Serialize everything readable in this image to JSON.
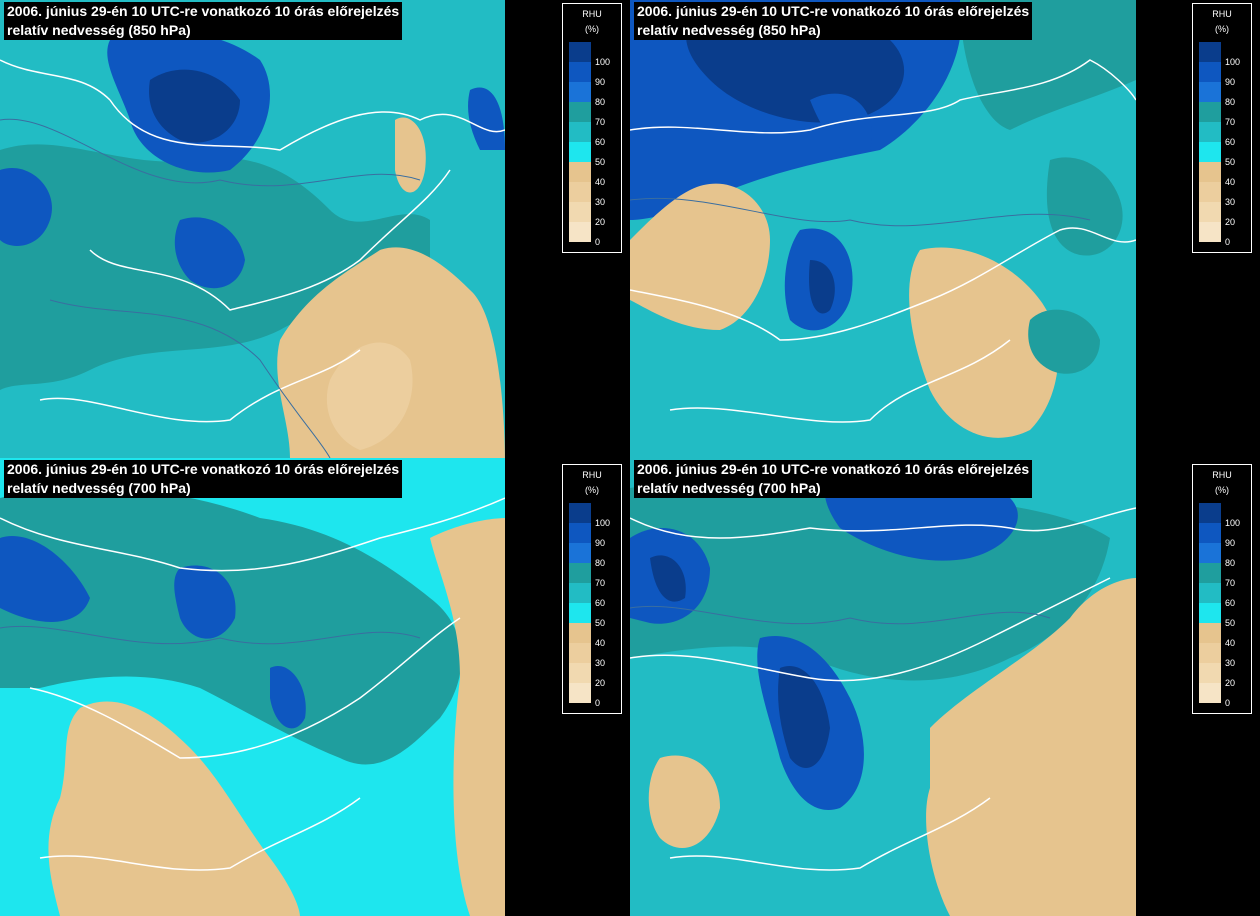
{
  "panels": [
    {
      "title_line1": "2006. június 29-én 10 UTC-re vonatkozó 10 órás előrejelzés",
      "title_line2": "relatív nedvesség (850 hPa)"
    },
    {
      "title_line1": "2006. június 29-én 10 UTC-re vonatkozó 10 órás előrejelzés",
      "title_line2": "relatív nedvesség (850 hPa)"
    },
    {
      "title_line1": "2006. június 29-én 10 UTC-re vonatkozó 10 órás előrejelzés",
      "title_line2": "relatív nedvesség (700 hPa)"
    },
    {
      "title_line1": "2006. június 29-én 10 UTC-re vonatkozó 10 órás előrejelzés",
      "title_line2": "relatív nedvesség (700 hPa)"
    }
  ],
  "legend": {
    "variable": "RHU",
    "unit": "(%)",
    "ticks": [
      "100",
      "90",
      "80",
      "70",
      "60",
      "50",
      "40",
      "30",
      "20",
      "0"
    ],
    "colors": [
      "#0a3d8c",
      "#0e57c0",
      "#1a73d8",
      "#1f9e9e",
      "#22bcc4",
      "#1ee6ee",
      "#e6c48e",
      "#ecce9e",
      "#f1d9b0",
      "#f6e4c6"
    ]
  }
}
